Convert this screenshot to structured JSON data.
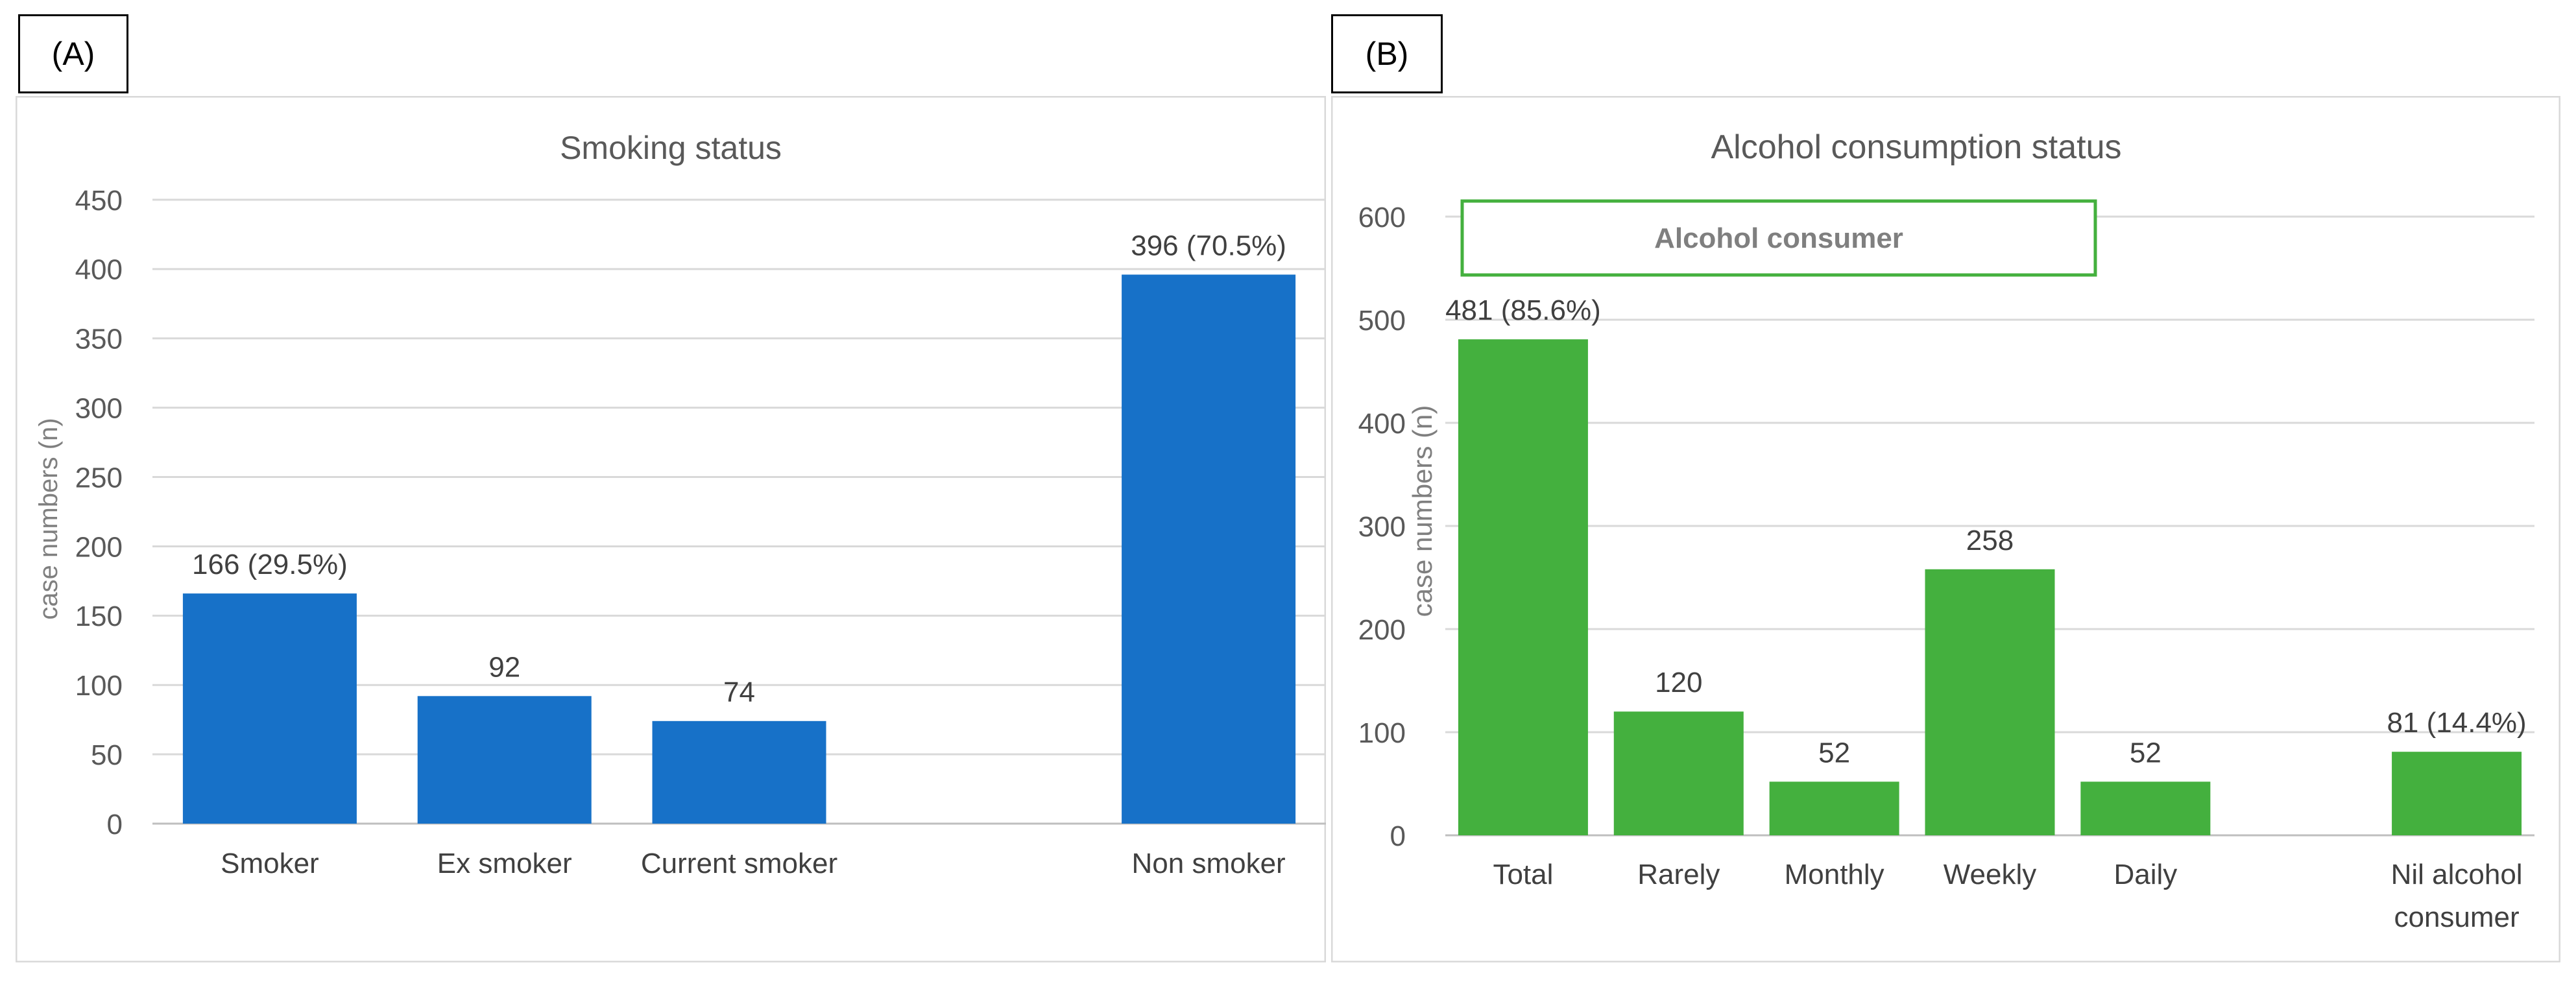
{
  "colors": {
    "smoking_bar": "#1771c8",
    "alcohol_bar": "#44b03e",
    "box_border": "#44b03e",
    "grid": "#d9d9d9",
    "text": "#404040"
  },
  "panel_a": {
    "tag": "(A)"
  },
  "panel_b": {
    "tag": "(B)",
    "annotation": "Alcohol consumer"
  },
  "chart_data": [
    {
      "type": "bar",
      "title": "Smoking status",
      "ylabel": "case numbers (n)",
      "xlabel": "",
      "ylim": [
        0,
        450
      ],
      "ytick_step": 50,
      "gap_after": 3,
      "categories": [
        "Smoker",
        "Ex smoker",
        "Current smoker",
        "Non smoker"
      ],
      "values": [
        166,
        92,
        74,
        396
      ],
      "labels": [
        "166 (29.5%)",
        "92",
        "74",
        "396 (70.5%)"
      ]
    },
    {
      "type": "bar",
      "title": "Alcohol consumption status",
      "ylabel": "case numbers (n)",
      "xlabel": "",
      "ylim": [
        0,
        600
      ],
      "ytick_step": 100,
      "gap_after": 5,
      "categories": [
        [
          "Total"
        ],
        [
          "Rarely"
        ],
        [
          "Monthly"
        ],
        [
          "Weekly"
        ],
        [
          "Daily"
        ],
        [
          "Nil alcohol",
          "consumer"
        ]
      ],
      "values": [
        481,
        120,
        52,
        258,
        52,
        81
      ],
      "labels": [
        "481 (85.6%)",
        "120",
        "52",
        "258",
        "52",
        "81 (14.4%)"
      ]
    }
  ]
}
